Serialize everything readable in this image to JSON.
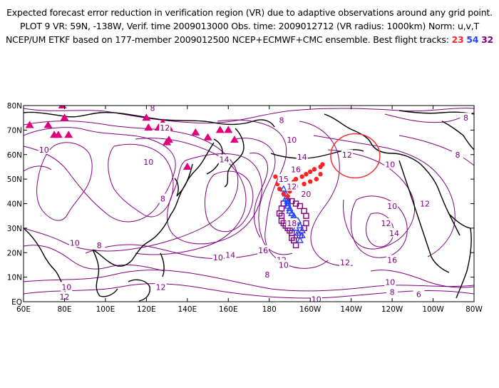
{
  "header": {
    "line1": "Expected forecast error reduction in verification region (VR) due to adaptive observations around any grid point.",
    "line2": "PLOT 9 VR: 59N, -138W, Verif. time 2009013000 Obs. time: 2009012712 (VR radius: 1000km) Norm: u,v,T",
    "line3_prefix": "NCEP/UM ETKF based on 177-member 2009012500 NCEP+ECMWF+CMC ensemble. Best flight tracks:",
    "track_a": "23",
    "track_b": "54",
    "track_c": "32"
  },
  "colors": {
    "contour": "#800080",
    "coast": "#000000",
    "track_a": "#ff2222",
    "track_b": "#2244ff",
    "track_c": "#800080",
    "vr_circle": "#ee3333",
    "triangles": "#e0007a"
  },
  "axes": {
    "lat_ticks": [
      "80N",
      "70N",
      "60N",
      "50N",
      "40N",
      "30N",
      "20N",
      "10N",
      "EQ"
    ],
    "lon_ticks": [
      "60E",
      "80E",
      "100E",
      "120E",
      "140E",
      "160E",
      "180",
      "160W",
      "140W",
      "120W",
      "100W",
      "80W"
    ]
  },
  "contour_labels": [
    {
      "text": "8",
      "lon": 123,
      "lat": 79
    },
    {
      "text": "8",
      "lon": 186,
      "lat": 74
    },
    {
      "text": "8",
      "lon": 276,
      "lat": 75
    },
    {
      "text": "12",
      "lon": 129,
      "lat": 71
    },
    {
      "text": "10",
      "lon": 70,
      "lat": 62
    },
    {
      "text": "10",
      "lon": 121,
      "lat": 57
    },
    {
      "text": "14",
      "lon": 158,
      "lat": 58
    },
    {
      "text": "10",
      "lon": 191,
      "lat": 66
    },
    {
      "text": "14",
      "lon": 196,
      "lat": 59
    },
    {
      "text": "12",
      "lon": 218,
      "lat": 60
    },
    {
      "text": "10",
      "lon": 239,
      "lat": 56
    },
    {
      "text": "8",
      "lon": 272,
      "lat": 60
    },
    {
      "text": "16",
      "lon": 193,
      "lat": 54
    },
    {
      "text": "15",
      "lon": 187,
      "lat": 50
    },
    {
      "text": "12",
      "lon": 191,
      "lat": 47
    },
    {
      "text": "20",
      "lon": 198,
      "lat": 44
    },
    {
      "text": "8",
      "lon": 128,
      "lat": 42
    },
    {
      "text": "18",
      "lon": 191,
      "lat": 32
    },
    {
      "text": "10",
      "lon": 240,
      "lat": 39
    },
    {
      "text": "12",
      "lon": 237,
      "lat": 32
    },
    {
      "text": "14",
      "lon": 241,
      "lat": 28
    },
    {
      "text": "12",
      "lon": 256,
      "lat": 40
    },
    {
      "text": "10",
      "lon": 85,
      "lat": 24
    },
    {
      "text": "8",
      "lon": 97,
      "lat": 23
    },
    {
      "text": "10",
      "lon": 155,
      "lat": 18
    },
    {
      "text": "14",
      "lon": 161,
      "lat": 19
    },
    {
      "text": "16",
      "lon": 177,
      "lat": 21
    },
    {
      "text": "12",
      "lon": 186,
      "lat": 17
    },
    {
      "text": "10",
      "lon": 187,
      "lat": 15
    },
    {
      "text": "8",
      "lon": 179,
      "lat": 11
    },
    {
      "text": "12",
      "lon": 217,
      "lat": 16
    },
    {
      "text": "16",
      "lon": 240,
      "lat": 17
    },
    {
      "text": "10",
      "lon": 239,
      "lat": 8
    },
    {
      "text": "8",
      "lon": 240,
      "lat": 4
    },
    {
      "text": "6",
      "lon": 253,
      "lat": 3
    },
    {
      "text": "10",
      "lon": 81,
      "lat": 6
    },
    {
      "text": "12",
      "lon": 80,
      "lat": 2
    },
    {
      "text": "12",
      "lon": 127,
      "lat": 6
    },
    {
      "text": "10",
      "lon": 203,
      "lat": 1
    }
  ],
  "triangles": [
    [
      79,
      80
    ],
    [
      72,
      72
    ],
    [
      80,
      75
    ],
    [
      63,
      72
    ],
    [
      75,
      68
    ],
    [
      82,
      68
    ],
    [
      77,
      68
    ],
    [
      120,
      75
    ],
    [
      121,
      71
    ],
    [
      128,
      73
    ],
    [
      126,
      71
    ],
    [
      130,
      65
    ],
    [
      131,
      71
    ],
    [
      131,
      66
    ],
    [
      144,
      69
    ],
    [
      150,
      67
    ],
    [
      156,
      70
    ],
    [
      160,
      70
    ],
    [
      163,
      66
    ],
    [
      140,
      55
    ]
  ],
  "track_a_points": [
    [
      183,
      51
    ],
    [
      184,
      48
    ],
    [
      185,
      46
    ],
    [
      187,
      44
    ],
    [
      189,
      43
    ],
    [
      190,
      45
    ],
    [
      191,
      47
    ],
    [
      192,
      49
    ],
    [
      193,
      50
    ],
    [
      196,
      51
    ],
    [
      198,
      52
    ],
    [
      200,
      53
    ],
    [
      202,
      54
    ],
    [
      205,
      55
    ],
    [
      206,
      56
    ],
    [
      205,
      52
    ],
    [
      203,
      50
    ],
    [
      200,
      49
    ],
    [
      197,
      48
    ],
    [
      193,
      47
    ],
    [
      190,
      47
    ]
  ],
  "track_b_points": [
    [
      187,
      46
    ],
    [
      188,
      44
    ],
    [
      189,
      41
    ],
    [
      189,
      39
    ],
    [
      190,
      37
    ],
    [
      192,
      35
    ],
    [
      194,
      33
    ],
    [
      195,
      31
    ],
    [
      196,
      29
    ],
    [
      196,
      27
    ],
    [
      195,
      25
    ],
    [
      194,
      28
    ],
    [
      193,
      30
    ],
    [
      193,
      32
    ],
    [
      192,
      34
    ],
    [
      191,
      36
    ],
    [
      190,
      38
    ],
    [
      189,
      40
    ],
    [
      188,
      42
    ]
  ],
  "track_c_points": [
    [
      185,
      36
    ],
    [
      186,
      35
    ],
    [
      186,
      33
    ],
    [
      187,
      32
    ],
    [
      188,
      31
    ],
    [
      189,
      30
    ],
    [
      190,
      29
    ],
    [
      191,
      28
    ],
    [
      191,
      26
    ],
    [
      192,
      25
    ],
    [
      193,
      23
    ],
    [
      195,
      27
    ],
    [
      197,
      30
    ],
    [
      198,
      32
    ],
    [
      198,
      35
    ],
    [
      197,
      37
    ],
    [
      195,
      39
    ],
    [
      193,
      40
    ],
    [
      191,
      41
    ],
    [
      189,
      41
    ],
    [
      187,
      40
    ],
    [
      186,
      38
    ]
  ],
  "vr_circle": {
    "lon": 222,
    "lat": 59.5,
    "rlon": 12,
    "rlat": 9
  }
}
